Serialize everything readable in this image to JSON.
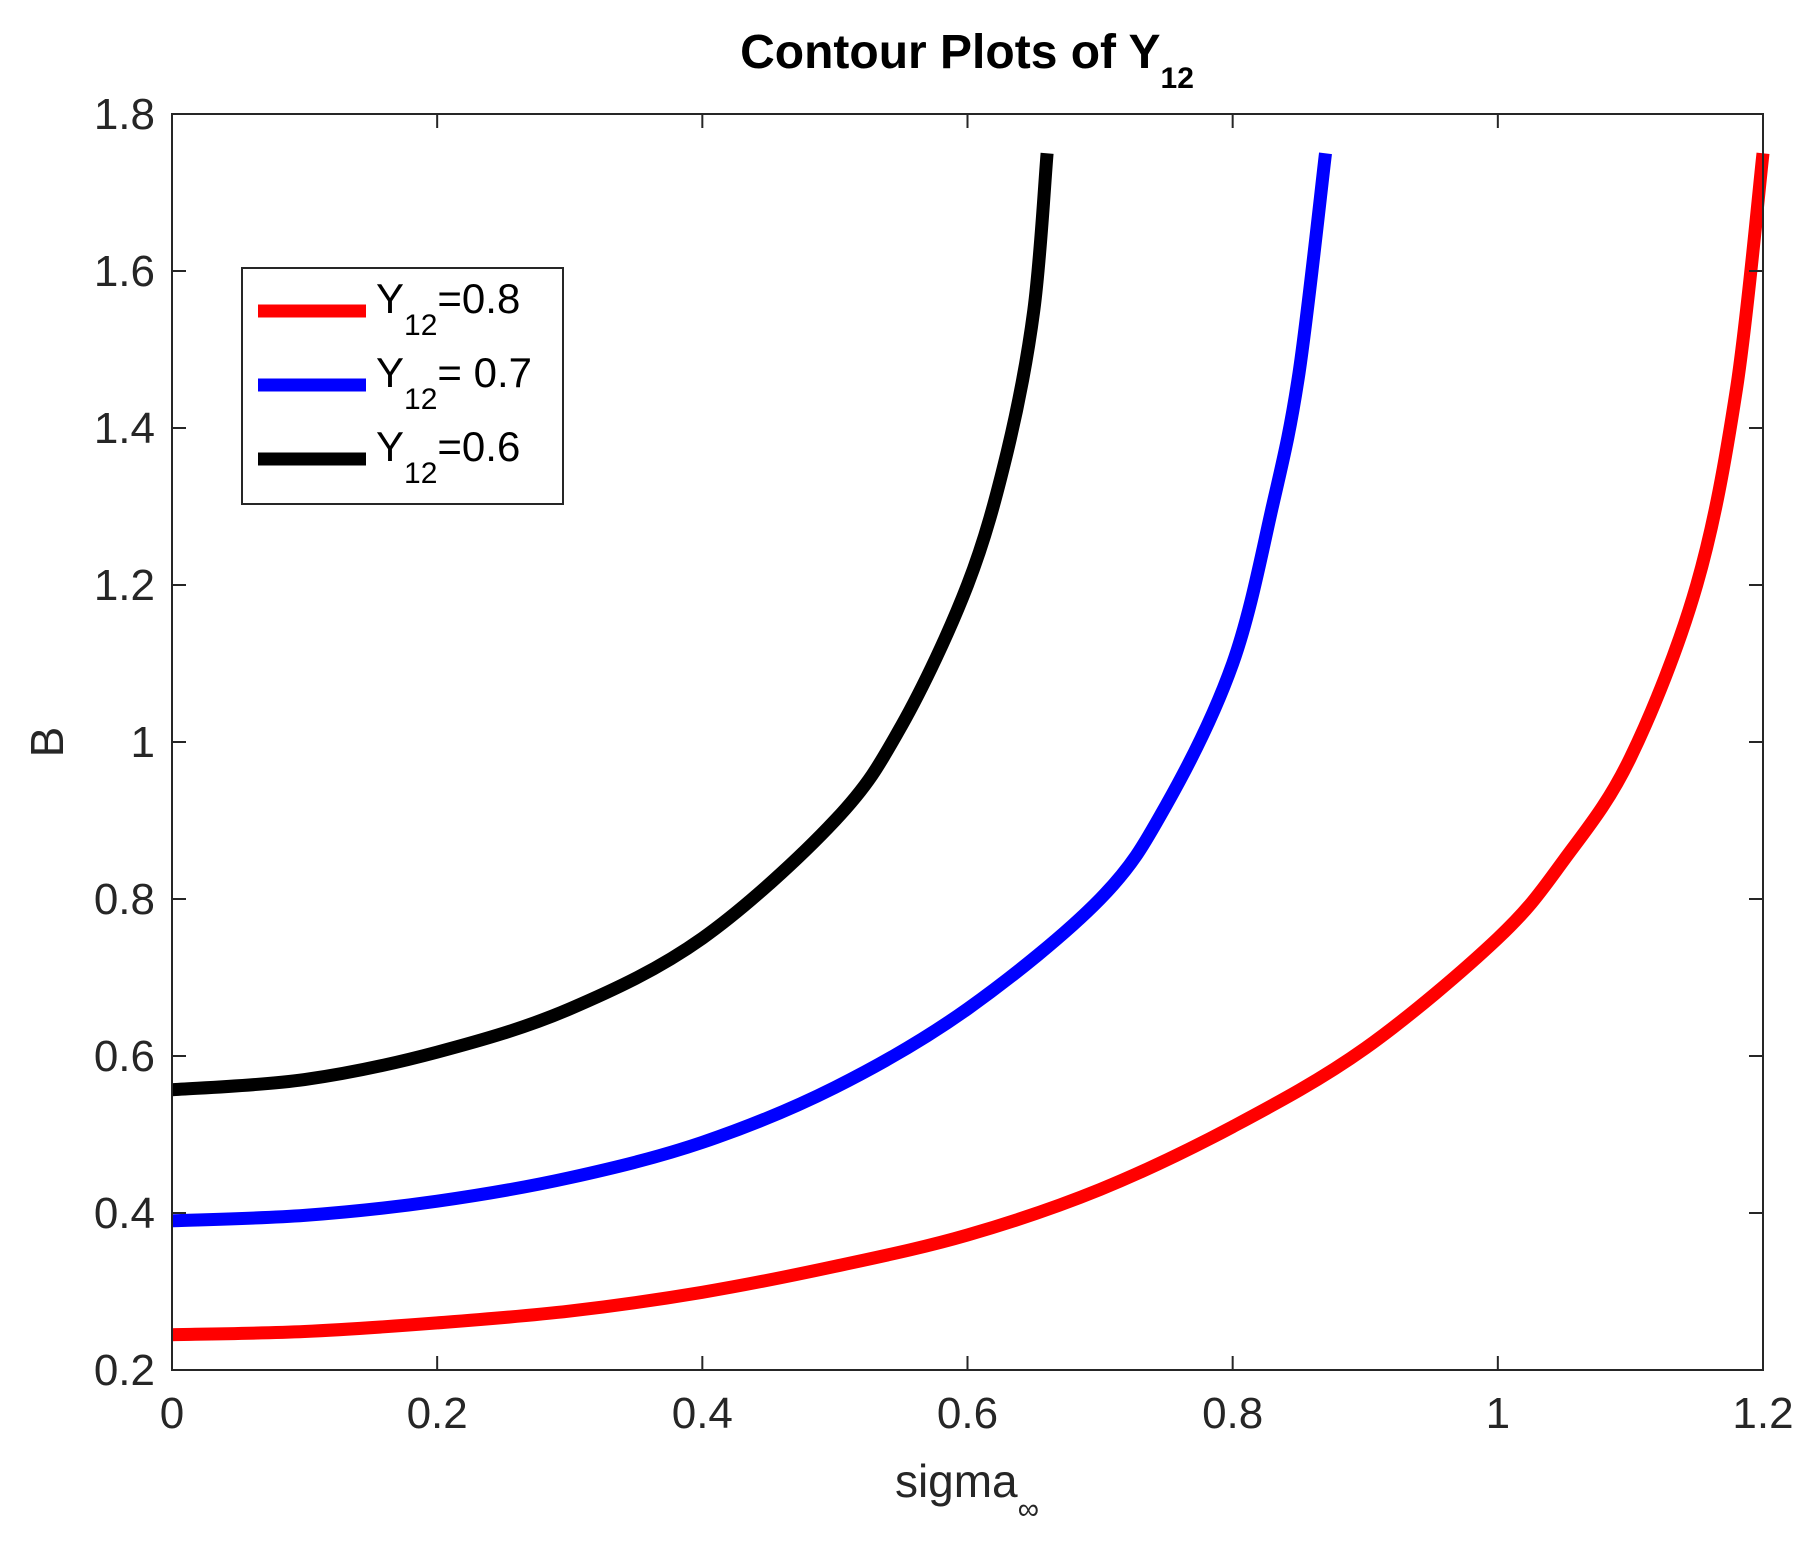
{
  "chart_data": {
    "type": "line",
    "title": {
      "main": "Contour Plots of Y",
      "sub": "12"
    },
    "xlabel": {
      "main": "sigma",
      "sub": "∞"
    },
    "ylabel": "B",
    "xlim": [
      0,
      1.2
    ],
    "ylim": [
      0.2,
      1.8
    ],
    "xticks": [
      0,
      0.2,
      0.4,
      0.6,
      0.8,
      1,
      1.2
    ],
    "xtick_labels": [
      "0",
      "0.2",
      "0.4",
      "0.6",
      "0.8",
      "1",
      "1.2"
    ],
    "yticks": [
      0.2,
      0.4,
      0.6,
      0.8,
      1,
      1.2,
      1.4,
      1.6,
      1.8
    ],
    "ytick_labels": [
      "0.2",
      "0.4",
      "0.6",
      "0.8",
      "1",
      "1.2",
      "1.4",
      "1.6",
      "1.8"
    ],
    "grid": false,
    "legend_position": "top-left",
    "series": [
      {
        "name": {
          "pre": "Y",
          "sub": "12",
          "post": "=0.8"
        },
        "color": "#ff0000",
        "x": [
          0,
          0.1,
          0.2,
          0.3,
          0.4,
          0.5,
          0.6,
          0.7,
          0.8,
          0.9,
          1.0,
          1.05,
          1.1,
          1.15,
          1.18,
          1.2
        ],
        "y": [
          0.245,
          0.249,
          0.26,
          0.275,
          0.299,
          0.332,
          0.372,
          0.43,
          0.51,
          0.61,
          0.75,
          0.85,
          0.98,
          1.2,
          1.45,
          1.75
        ]
      },
      {
        "name": {
          "pre": "Y",
          "sub": "12",
          "post": "= 0.7"
        },
        "color": "#0000ff",
        "x": [
          0,
          0.1,
          0.2,
          0.3,
          0.4,
          0.5,
          0.6,
          0.7,
          0.75,
          0.8,
          0.83,
          0.85,
          0.87
        ],
        "y": [
          0.39,
          0.397,
          0.415,
          0.445,
          0.49,
          0.56,
          0.66,
          0.8,
          0.92,
          1.1,
          1.3,
          1.47,
          1.75
        ]
      },
      {
        "name": {
          "pre": "Y",
          "sub": "12",
          "post": "=0.6"
        },
        "color": "#000000",
        "x": [
          0,
          0.1,
          0.2,
          0.3,
          0.4,
          0.5,
          0.55,
          0.6,
          0.63,
          0.65,
          0.66
        ],
        "y": [
          0.557,
          0.57,
          0.605,
          0.66,
          0.75,
          0.9,
          1.02,
          1.2,
          1.37,
          1.55,
          1.75
        ]
      }
    ]
  }
}
